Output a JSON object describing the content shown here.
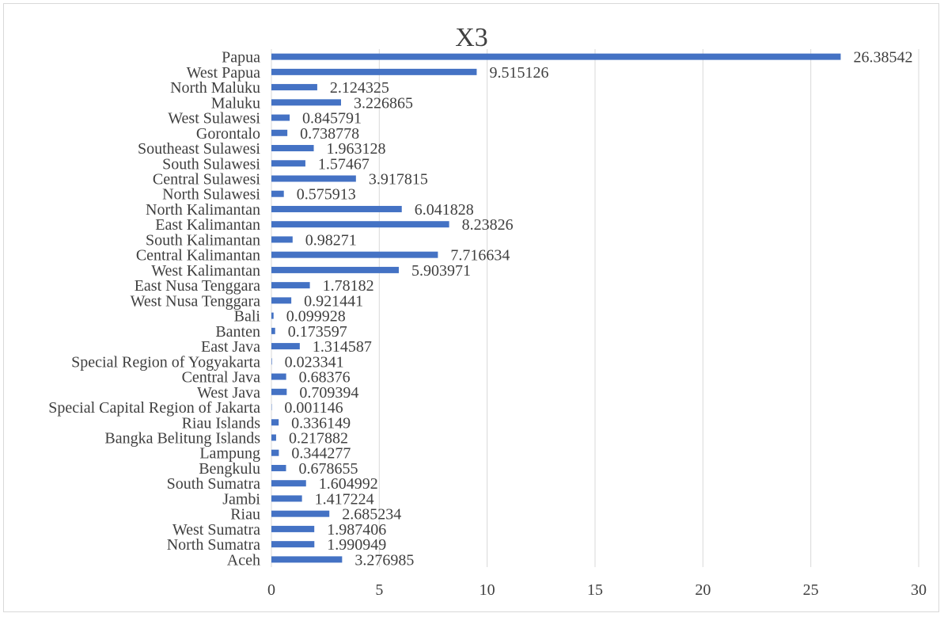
{
  "chart_data": {
    "type": "bar",
    "orientation": "horizontal",
    "title": "X3",
    "xlabel": "",
    "ylabel": "",
    "xlim": [
      0,
      30
    ],
    "xticks": [
      0,
      5,
      10,
      15,
      20,
      25,
      30
    ],
    "grid": true,
    "legend": "none",
    "bar_color": "#4472c4",
    "categories": [
      "Aceh",
      "North Sumatra",
      "West Sumatra",
      "Riau",
      "Jambi",
      "South Sumatra",
      "Bengkulu",
      "Lampung",
      "Bangka Belitung Islands",
      "Riau Islands",
      "Special Capital Region of Jakarta",
      "West Java",
      "Central Java",
      "Special Region of Yogyakarta",
      "East Java",
      "Banten",
      "Bali",
      "West Nusa Tenggara",
      "East Nusa Tenggara",
      "West Kalimantan",
      "Central Kalimantan",
      "South Kalimantan",
      "East Kalimantan",
      "North Kalimantan",
      "North Sulawesi",
      "Central Sulawesi",
      "South Sulawesi",
      "Southeast Sulawesi",
      "Gorontalo",
      "West Sulawesi",
      "Maluku",
      "North Maluku",
      "West Papua",
      "Papua"
    ],
    "values": [
      3.276985,
      1.990949,
      1.987406,
      2.685234,
      1.417224,
      1.604992,
      0.678655,
      0.344277,
      0.217882,
      0.336149,
      0.001146,
      0.709394,
      0.68376,
      0.023341,
      1.314587,
      0.173597,
      0.099928,
      0.921441,
      1.78182,
      5.903971,
      7.716634,
      0.98271,
      8.23826,
      6.041828,
      0.575913,
      3.917815,
      1.57467,
      1.963128,
      0.738778,
      0.845791,
      3.226865,
      2.124325,
      9.515126,
      26.38542
    ],
    "value_labels": [
      "3.276985",
      "1.990949",
      "1.987406",
      "2.685234",
      "1.417224",
      "1.604992",
      "0.678655",
      "0.344277",
      "0.217882",
      "0.336149",
      "0.001146",
      "0.709394",
      "0.68376",
      "0.023341",
      "1.314587",
      "0.173597",
      "0.099928",
      "0.921441",
      "1.78182",
      "5.903971",
      "7.716634",
      "0.98271",
      "8.23826",
      "6.041828",
      "0.575913",
      "3.917815",
      "1.57467",
      "1.963128",
      "0.738778",
      "0.845791",
      "3.226865",
      "2.124325",
      "9.515126",
      "26.38542"
    ]
  }
}
